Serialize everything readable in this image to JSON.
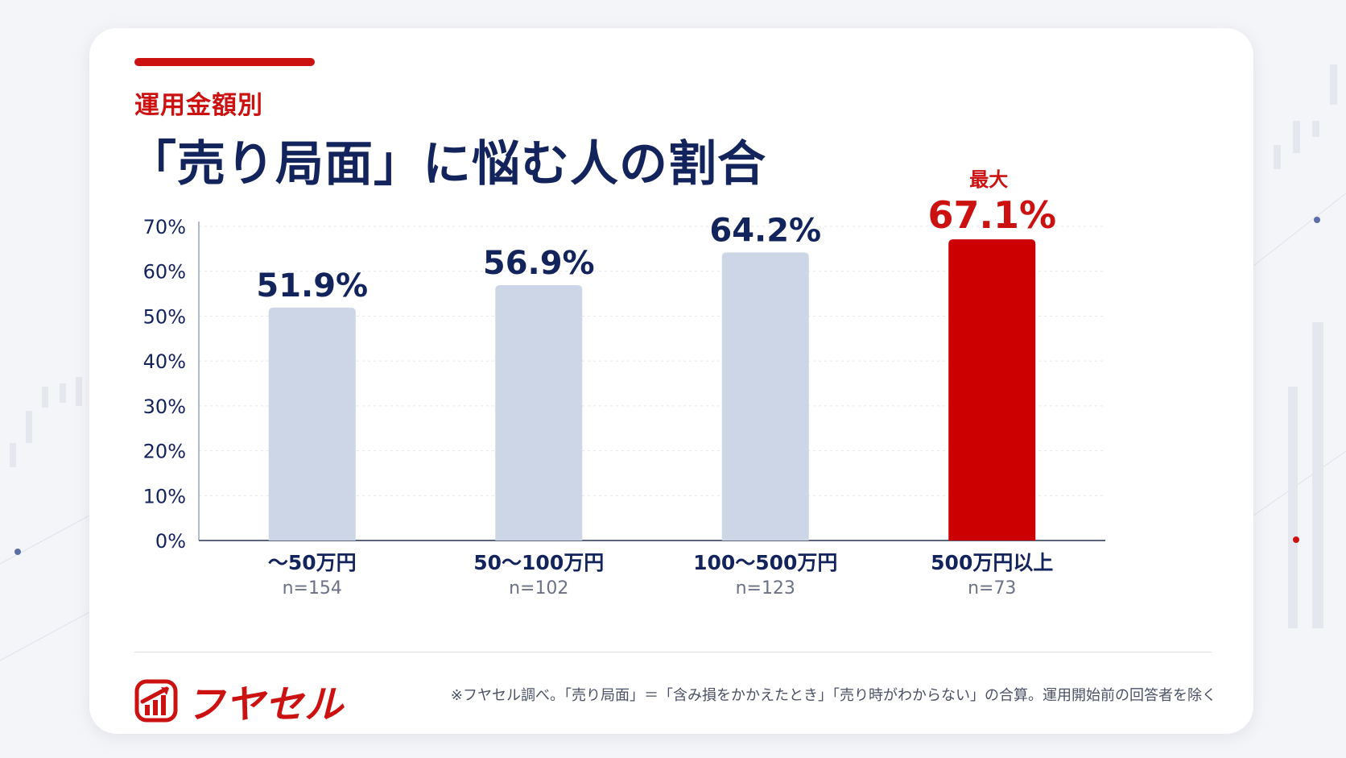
{
  "subtitle": "運用金額別",
  "title": "「売り局面」に悩む人の割合",
  "highlight_label": "最大",
  "brand": "フヤセル",
  "footnote": "※フヤセル調べ。「売り局面」＝「含み損をかかえたとき」「売り時がわからない」の合算。運用開始前の回答者を除く",
  "colors": {
    "accent": "#cc1111",
    "navy": "#13235b",
    "bar": "#ccd6e6",
    "highlight_bar": "#cc0000"
  },
  "chart_data": {
    "type": "bar",
    "categories": [
      "〜50万円",
      "50〜100万円",
      "100〜500万円",
      "500万円以上"
    ],
    "sample_sizes": [
      "n=154",
      "n=102",
      "n=123",
      "n=73"
    ],
    "values": [
      51.9,
      56.9,
      64.2,
      67.1
    ],
    "value_labels": [
      "51.9%",
      "56.9%",
      "64.2%",
      "67.1%"
    ],
    "highlight_index": 3,
    "ylim": [
      0,
      70
    ],
    "yticks": [
      "0%",
      "10%",
      "20%",
      "30%",
      "40%",
      "50%",
      "60%",
      "70%"
    ],
    "grid": true,
    "legend": "none"
  }
}
